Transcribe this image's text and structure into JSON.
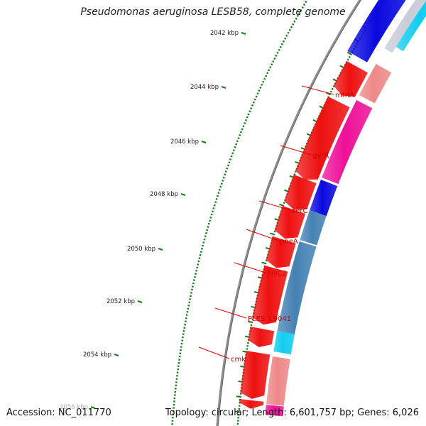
{
  "title": "Pseudomonas aeruginosa LESB58, complete genome",
  "footer": {
    "accession": "Accession: NC_011770",
    "summary": "Topology: circular; Length: 6,601,757 bp; Genes: 6,026"
  },
  "colors": {
    "backbone": "#8c8c8c",
    "tick": "#1a7a1a",
    "label_line": "#e00000",
    "label_text": "#cc0000",
    "cds_forward": "#ee1111",
    "cds_reverse_light": "#ee8888",
    "cds_reverse_magenta": "#ee1199",
    "cds_blue": "#0a0ae0",
    "cds_steel": "#4682b4",
    "cds_cyan": "#11ccee"
  },
  "scale": {
    "unit": "kbp",
    "labels": [
      "2042 kbp",
      "2044 kbp",
      "2046 kbp",
      "2048 kbp",
      "2050 kbp",
      "2052 kbp",
      "2054 kbp",
      "2056 kbp"
    ]
  },
  "genes": [
    {
      "name": "mtnA"
    },
    {
      "name": "gyrA"
    },
    {
      "name": "serC"
    },
    {
      "name": "pheA"
    },
    {
      "name": "hisC2"
    },
    {
      "name": "PLES_19041"
    },
    {
      "name": "cmk"
    }
  ]
}
